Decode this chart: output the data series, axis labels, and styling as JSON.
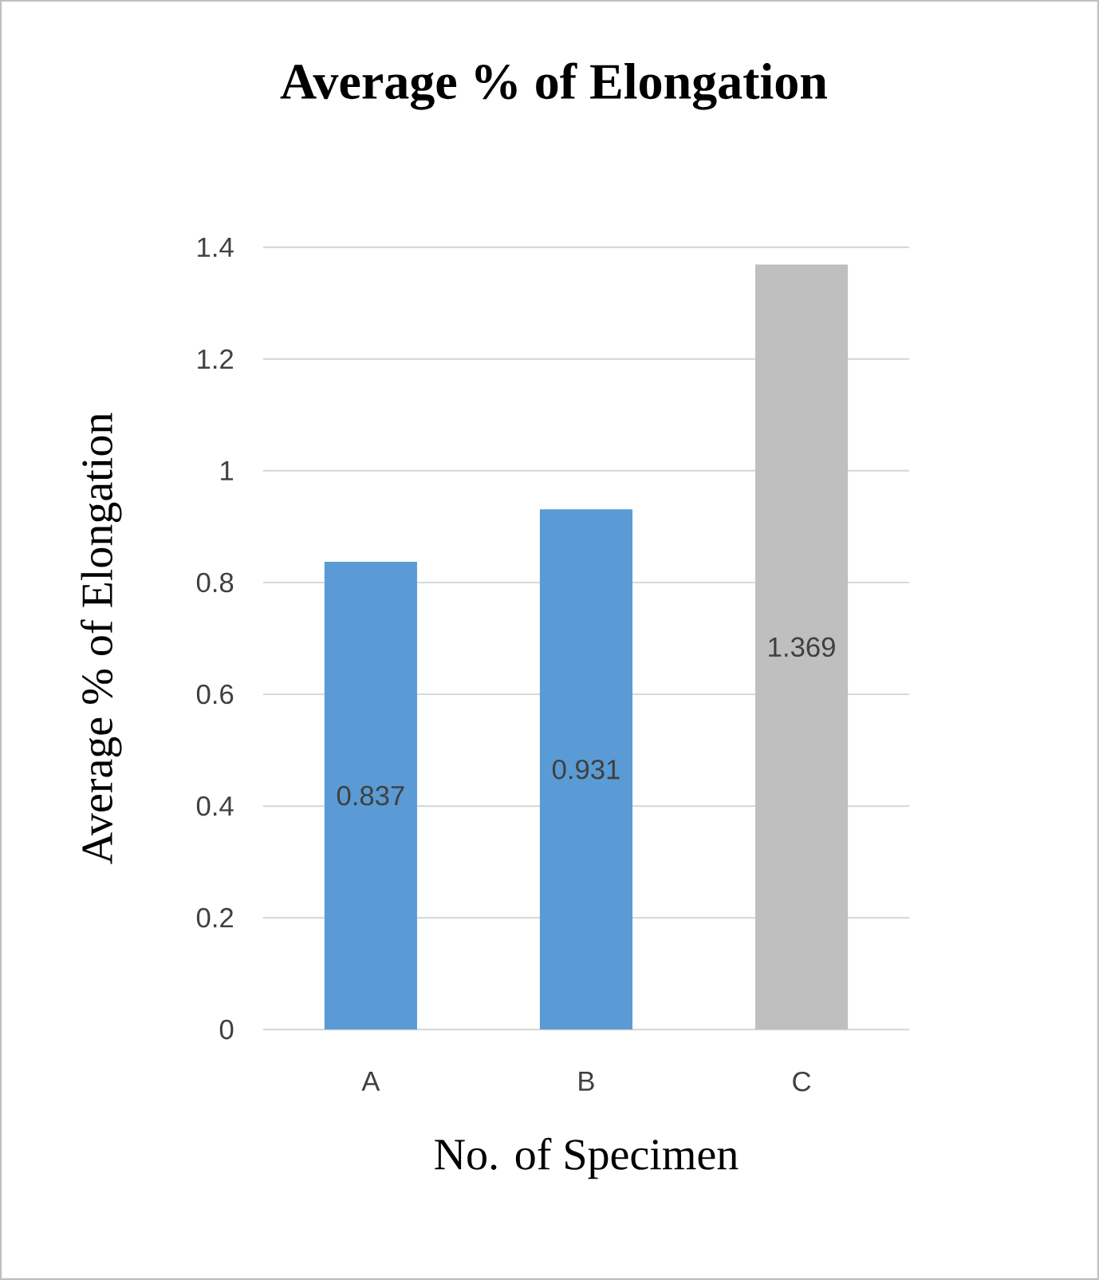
{
  "chart_data": {
    "type": "bar",
    "title": "Average % of Elongation",
    "xlabel": "No. of Specimen",
    "ylabel": "Average % of Elongation",
    "categories": [
      "A",
      "B",
      "C"
    ],
    "values": [
      0.837,
      0.931,
      1.369
    ],
    "colors": [
      "#5b9bd5",
      "#5b9bd5",
      "#bfbfbf"
    ],
    "ylim": [
      0,
      1.4
    ],
    "yticks": [
      0,
      0.2,
      0.4,
      0.6,
      0.8,
      1,
      1.2,
      1.4
    ],
    "grid": "y",
    "data_labels": true
  }
}
